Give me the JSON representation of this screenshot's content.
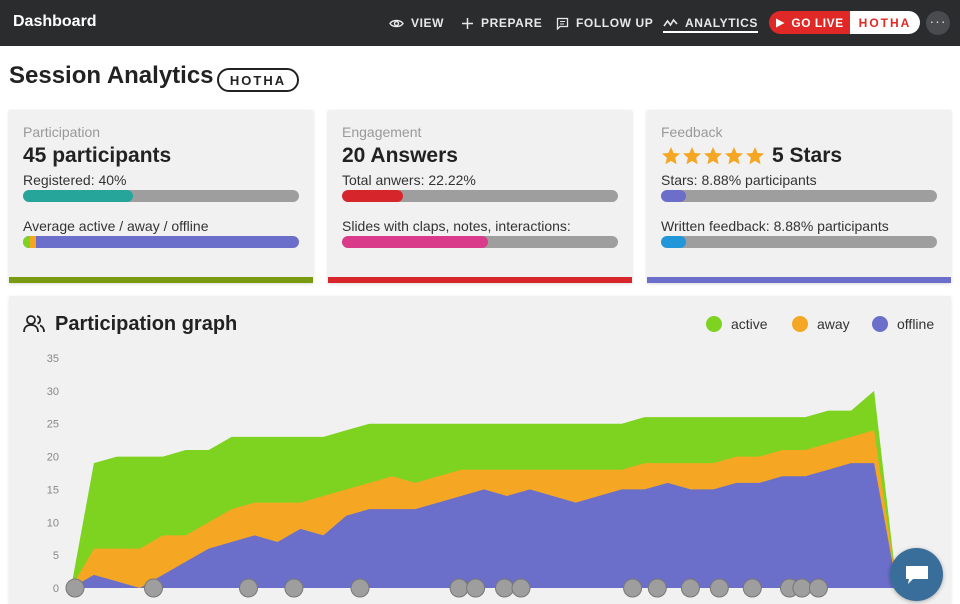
{
  "topbar": {
    "brand": "Dashboard",
    "nav": [
      {
        "label": "VIEW",
        "icon": "eye-icon"
      },
      {
        "label": "PREPARE",
        "icon": "plus-icon"
      },
      {
        "label": "FOLLOW UP",
        "icon": "message-icon"
      },
      {
        "label": "ANALYTICS",
        "icon": "analytics-icon",
        "active": true
      }
    ],
    "go_live": "GO LIVE",
    "event_code": "HOTHA",
    "more": "···"
  },
  "page": {
    "title": "Session Analytics",
    "badge": "HOTHA"
  },
  "cards": {
    "participation": {
      "kicker": "Participation",
      "big": "45 participants",
      "label1": "Registered: 40%",
      "bar1_fraction": 0.4,
      "label2": "Average active / away / offline",
      "bar2_fractions": {
        "active": 0.025,
        "away": 0.025,
        "offline": 0.95
      },
      "accent": "#7a9a12"
    },
    "engagement": {
      "kicker": "Engagement",
      "big": "20 Answers",
      "label1": "Total anwers: 22.22%",
      "bar1_fraction": 0.2222,
      "label2": "Slides with claps, notes, interactions:",
      "bar2_fraction": 0.53,
      "accent": "#d7262b"
    },
    "feedback": {
      "kicker": "Feedback",
      "stars_rating": 5,
      "big": "5 Stars",
      "label1": "Stars: 8.88% participants",
      "bar1_fraction": 0.0888,
      "label2": "Written feedback: 8.88% participants",
      "bar2_fraction": 0.0888,
      "accent": "#6b6fc9"
    }
  },
  "graph": {
    "title": "Participation graph",
    "legend": [
      {
        "label": "active",
        "color": "#7ed321"
      },
      {
        "label": "away",
        "color": "#f5a623"
      },
      {
        "label": "offline",
        "color": "#6b6fc9"
      }
    ]
  },
  "colors": {
    "active": "#7ed321",
    "away": "#f5a623",
    "offline": "#6b6fc9",
    "teal": "#26a69a",
    "red": "#d7262b",
    "pink": "#d93a8a",
    "blue": "#2196d8"
  },
  "chart_data": {
    "type": "area",
    "stacked": true,
    "title": "",
    "xlabel": "",
    "ylabel": "",
    "ylim": [
      0,
      35
    ],
    "yticks": [
      0,
      5,
      10,
      15,
      20,
      25,
      30,
      35
    ],
    "series": [
      {
        "name": "offline",
        "values": [
          0,
          2,
          1,
          0,
          2,
          4,
          6,
          7,
          8,
          7,
          9,
          8,
          11,
          12,
          12,
          12,
          13,
          14,
          15,
          14,
          15,
          14,
          13,
          14,
          15,
          15,
          16,
          15,
          15,
          16,
          16,
          17,
          17,
          18,
          19,
          19,
          0
        ]
      },
      {
        "name": "away",
        "values": [
          0,
          4,
          5,
          6,
          6,
          4,
          4,
          5,
          5,
          6,
          4,
          6,
          4,
          4,
          5,
          4,
          4,
          4,
          3,
          4,
          3,
          4,
          5,
          4,
          3,
          4,
          3,
          4,
          4,
          4,
          4,
          4,
          4,
          4,
          4,
          5,
          0
        ]
      },
      {
        "name": "active",
        "values": [
          0,
          13,
          14,
          14,
          12,
          13,
          11,
          11,
          10,
          10,
          10,
          9,
          9,
          9,
          8,
          9,
          8,
          7,
          7,
          7,
          7,
          7,
          7,
          7,
          7,
          7,
          7,
          7,
          7,
          6,
          6,
          5,
          5,
          5,
          4,
          6,
          0
        ]
      }
    ],
    "markers": 17,
    "grid": false,
    "legend_position": "top-right"
  }
}
